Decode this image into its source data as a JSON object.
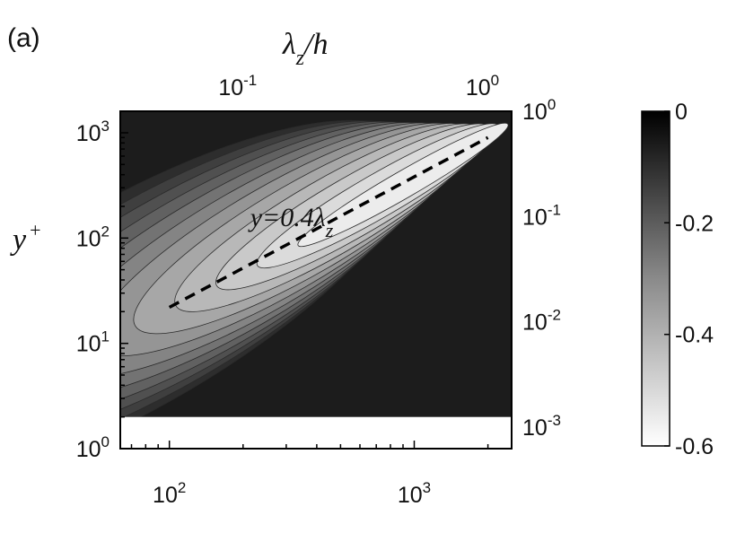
{
  "panel_label": "(a)",
  "chart_data": {
    "type": "heatmap",
    "style": "filled contour, grayscale",
    "xlabel": "",
    "ylabel": "y",
    "ylabel_sup": "+",
    "top_xlabel": "λ",
    "top_xlabel_sub": "z",
    "top_xlabel_suffix": "/h",
    "x_scale": "log",
    "y_scale": "log",
    "xlim": [
      63,
      2500
    ],
    "ylim": [
      1,
      1600
    ],
    "x_ticks": [
      {
        "base": "10",
        "exp": "2",
        "value": 100
      },
      {
        "base": "10",
        "exp": "3",
        "value": 1000
      }
    ],
    "y_ticks": [
      {
        "base": "10",
        "exp": "0",
        "value": 1
      },
      {
        "base": "10",
        "exp": "1",
        "value": 10
      },
      {
        "base": "10",
        "exp": "2",
        "value": 100
      },
      {
        "base": "10",
        "exp": "3",
        "value": 1000
      }
    ],
    "top_ticks": [
      {
        "base": "10",
        "exp": "-1",
        "value": 0.1
      },
      {
        "base": "10",
        "exp": "0",
        "value": 1
      }
    ],
    "right_ticks": [
      {
        "base": "10",
        "exp": "0",
        "value": 1
      },
      {
        "base": "10",
        "exp": "-1",
        "value": 0.1
      },
      {
        "base": "10",
        "exp": "-2",
        "value": 0.01
      },
      {
        "base": "10",
        "exp": "-3",
        "value": 0.001
      }
    ],
    "masked_below_y": 2,
    "contour_levels": [
      0,
      -0.05,
      -0.1,
      -0.15,
      -0.2,
      -0.25,
      -0.3,
      -0.35,
      -0.4,
      -0.45,
      -0.5,
      -0.55,
      -0.6
    ],
    "peak": {
      "x": 900,
      "y": 320,
      "value": -0.6
    },
    "colorbar": {
      "ticks": [
        "0",
        "-0.2",
        "-0.4",
        "-0.6"
      ],
      "min": -0.6,
      "max": 0,
      "colormap": "white-to-black"
    },
    "annotation": {
      "text_main": "y=0.4λ",
      "text_sub": "z",
      "x": 420,
      "y": 130
    },
    "fit_line": {
      "label": "y=0.4λz",
      "style": "dashed",
      "color": "#000000",
      "points": [
        [
          100,
          22
        ],
        [
          2000,
          900
        ]
      ]
    }
  }
}
